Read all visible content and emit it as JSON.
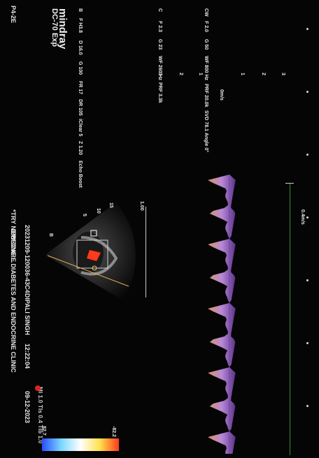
{
  "header": {
    "clinic": "DIBECARE DIABETES AND ENDOCRINE CLINIC",
    "patient": "DIPALI SINGH",
    "date": "09-12-2023",
    "time": "12:22:04",
    "exam_id": "20231209-120036-43C4",
    "preset": "*TRY NEW ONE ...",
    "probe": "P4-2E",
    "mi_ti": "MI 1.0 TIs 0.4 TIb 1.0"
  },
  "device": {
    "brand": "mindray",
    "model": "DC-70 Exp"
  },
  "params_b": [
    "B",
    "F H3.8",
    "D 16.0",
    "G 100",
    "FR 17",
    "DR 105",
    "iClear 5",
    "Z 1.20",
    "Echo Boost"
  ],
  "params_c": [
    "C",
    "F 2.3",
    "G 23",
    "WF 260 Hz",
    "PRF 3.3k"
  ],
  "params_cw": [
    "CW",
    "F 2.0",
    "G 50",
    "WF 800 Hz",
    "PRF 20.0k",
    "SVD 78.1",
    "Angle 0°"
  ],
  "indicators": {
    "colorbar_top": "82.7",
    "colorbar_bottom": "-82.2",
    "velocity_unit": "0m/s",
    "b_label": "B",
    "depth_scale": "1.00",
    "speed_scale": "0.4m/s",
    "ticks": [
      "3",
      "2",
      "1",
      "1",
      "2",
      "3"
    ],
    "sector_marks": [
      "5",
      "10",
      "15"
    ]
  },
  "colors": {
    "background": "#050505",
    "doppler": "#d7a0ff",
    "timeline": "#3f8a3a",
    "color_flow": "#ff3a1a"
  }
}
